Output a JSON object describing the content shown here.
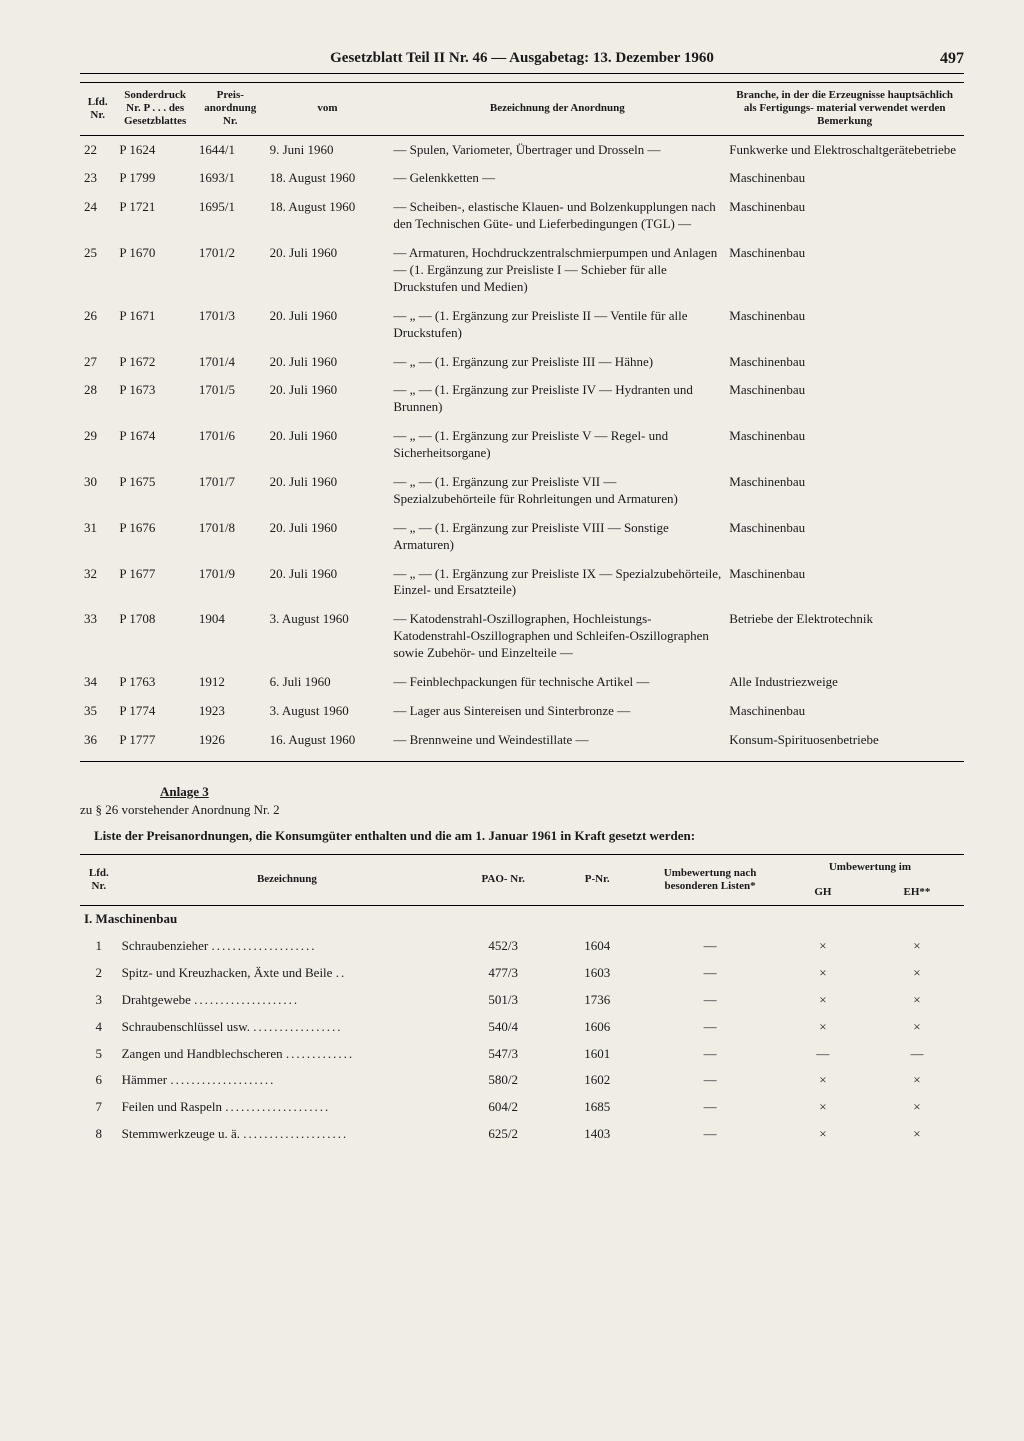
{
  "header": {
    "title": "Gesetzblatt Teil II Nr. 46 — Ausgabetag: 13. Dezember 1960",
    "page_number": "497"
  },
  "main_table": {
    "columns": {
      "lfd": "Lfd.\nNr.",
      "sonder": "Sonderdruck\nNr. P . . . des\nGesetzblattes",
      "preis": "Preis-\nanordnung\nNr.",
      "vom": "vom",
      "bez": "Bezeichnung der Anordnung",
      "branche": "Branche, in der die Erzeugnisse\nhauptsächlich als Fertigungs-\nmaterial verwendet werden\nBemerkung"
    },
    "rows": [
      {
        "lfd": "22",
        "sonder": "P 1624",
        "preis": "1644/1",
        "vom": "9. Juni 1960",
        "bez": "— Spulen, Variometer, Übertrager und Drosseln —",
        "branche": "Funkwerke und Elektroschaltgerätebetriebe"
      },
      {
        "lfd": "23",
        "sonder": "P 1799",
        "preis": "1693/1",
        "vom": "18. August 1960",
        "bez": "— Gelenkketten —",
        "branche": "Maschinenbau"
      },
      {
        "lfd": "24",
        "sonder": "P 1721",
        "preis": "1695/1",
        "vom": "18. August 1960",
        "bez": "— Scheiben-, elastische Klauen- und Bolzenkupplungen nach den Technischen Güte- und Lieferbedingungen (TGL) —",
        "branche": "Maschinenbau"
      },
      {
        "lfd": "25",
        "sonder": "P 1670",
        "preis": "1701/2",
        "vom": "20. Juli 1960",
        "bez": "— Armaturen, Hochdruckzentralschmierpumpen und Anlagen — (1. Ergänzung zur Preisliste I — Schieber für alle Druckstufen und Medien)",
        "branche": "Maschinenbau"
      },
      {
        "lfd": "26",
        "sonder": "P 1671",
        "preis": "1701/3",
        "vom": "20. Juli 1960",
        "bez": "— „ — (1. Ergänzung zur Preisliste II — Ventile für alle Druckstufen)",
        "branche": "Maschinenbau"
      },
      {
        "lfd": "27",
        "sonder": "P 1672",
        "preis": "1701/4",
        "vom": "20. Juli 1960",
        "bez": "— „ — (1. Ergänzung zur Preisliste III — Hähne)",
        "branche": "Maschinenbau"
      },
      {
        "lfd": "28",
        "sonder": "P 1673",
        "preis": "1701/5",
        "vom": "20. Juli 1960",
        "bez": "— „ — (1. Ergänzung zur Preisliste IV — Hydranten und Brunnen)",
        "branche": "Maschinenbau"
      },
      {
        "lfd": "29",
        "sonder": "P 1674",
        "preis": "1701/6",
        "vom": "20. Juli 1960",
        "bez": "— „ — (1. Ergänzung zur Preisliste V — Regel- und Sicherheitsorgane)",
        "branche": "Maschinenbau"
      },
      {
        "lfd": "30",
        "sonder": "P 1675",
        "preis": "1701/7",
        "vom": "20. Juli 1960",
        "bez": "— „ — (1. Ergänzung zur Preisliste VII — Spezialzubehörteile für Rohrleitungen und Armaturen)",
        "branche": "Maschinenbau"
      },
      {
        "lfd": "31",
        "sonder": "P 1676",
        "preis": "1701/8",
        "vom": "20. Juli 1960",
        "bez": "— „ — (1. Ergänzung zur Preisliste VIII — Sonstige Armaturen)",
        "branche": "Maschinenbau"
      },
      {
        "lfd": "32",
        "sonder": "P 1677",
        "preis": "1701/9",
        "vom": "20. Juli 1960",
        "bez": "— „ — (1. Ergänzung zur Preisliste IX — Spezialzubehörteile, Einzel- und Ersatzteile)",
        "branche": "Maschinenbau"
      },
      {
        "lfd": "33",
        "sonder": "P 1708",
        "preis": "1904",
        "vom": "3. August 1960",
        "bez": "— Katodenstrahl-Oszillographen, Hochleistungs-Katodenstrahl-Oszillographen und Schleifen-Oszillographen sowie Zubehör- und Einzelteile —",
        "branche": "Betriebe der Elektrotechnik"
      },
      {
        "lfd": "34",
        "sonder": "P 1763",
        "preis": "1912",
        "vom": "6. Juli 1960",
        "bez": "— Feinblechpackungen für technische Artikel —",
        "branche": "Alle Industriezweige"
      },
      {
        "lfd": "35",
        "sonder": "P 1774",
        "preis": "1923",
        "vom": "3. August 1960",
        "bez": "— Lager aus Sintereisen und Sinterbronze —",
        "branche": "Maschinenbau"
      },
      {
        "lfd": "36",
        "sonder": "P 1777",
        "preis": "1926",
        "vom": "16. August 1960",
        "bez": "— Brennweine und Weindestillate —",
        "branche": "Konsum-Spirituosenbetriebe"
      }
    ]
  },
  "anlage": {
    "title": "Anlage 3",
    "subtitle": "zu § 26 vorstehender Anordnung Nr. 2",
    "heading": "Liste der Preisanordnungen, die Konsumgüter enthalten und die am 1. Januar 1961 in Kraft gesetzt werden:"
  },
  "sub_table": {
    "columns": {
      "lfd": "Lfd.\nNr.",
      "bez": "Bezeichnung",
      "pao": "PAO-\nNr.",
      "pnr": "P-Nr.",
      "umb": "Umbewertung\nnach besonderen\nListen*",
      "gh": "GH",
      "eh": "EH**",
      "umb_top": "Umbewertung im"
    },
    "section": "I. Maschinenbau",
    "rows": [
      {
        "lfd": "1",
        "bez": "Schraubenzieher",
        "pao": "452/3",
        "pnr": "1604",
        "umb": "—",
        "gh": "×",
        "eh": "×"
      },
      {
        "lfd": "2",
        "bez": "Spitz- und Kreuzhacken, Äxte und Beile",
        "pao": "477/3",
        "pnr": "1603",
        "umb": "—",
        "gh": "×",
        "eh": "×"
      },
      {
        "lfd": "3",
        "bez": "Drahtgewebe",
        "pao": "501/3",
        "pnr": "1736",
        "umb": "—",
        "gh": "×",
        "eh": "×"
      },
      {
        "lfd": "4",
        "bez": "Schraubenschlüssel usw.",
        "pao": "540/4",
        "pnr": "1606",
        "umb": "—",
        "gh": "×",
        "eh": "×"
      },
      {
        "lfd": "5",
        "bez": "Zangen und Handblechscheren",
        "pao": "547/3",
        "pnr": "1601",
        "umb": "—",
        "gh": "—",
        "eh": "—"
      },
      {
        "lfd": "6",
        "bez": "Hämmer",
        "pao": "580/2",
        "pnr": "1602",
        "umb": "—",
        "gh": "×",
        "eh": "×"
      },
      {
        "lfd": "7",
        "bez": "Feilen und Raspeln",
        "pao": "604/2",
        "pnr": "1685",
        "umb": "—",
        "gh": "×",
        "eh": "×"
      },
      {
        "lfd": "8",
        "bez": "Stemmwerkzeuge u. ä.",
        "pao": "625/2",
        "pnr": "1403",
        "umb": "—",
        "gh": "×",
        "eh": "×"
      }
    ]
  }
}
